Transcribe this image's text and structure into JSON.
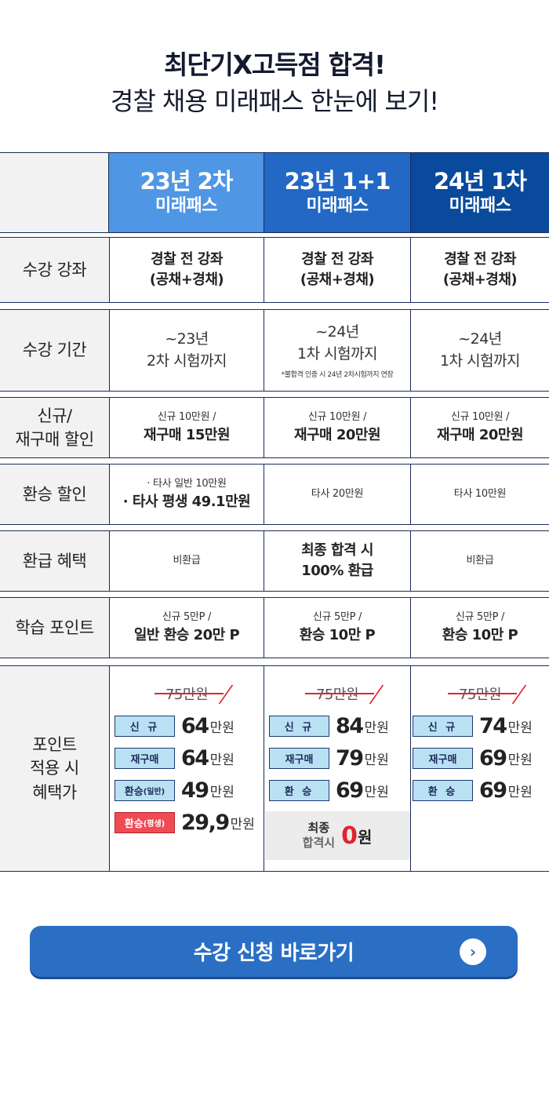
{
  "hero": {
    "line1": "최단기X고득점 합격!",
    "line2": "경찰 채용 미래패스 한눈에 보기!"
  },
  "columns": [
    {
      "title": "23년 2차",
      "subtitle": "미래패스"
    },
    {
      "title": "23년 1+1",
      "subtitle": "미래패스"
    },
    {
      "title": "24년 1차",
      "subtitle": "미래패스"
    }
  ],
  "rows": {
    "courses": {
      "label": "수강 강좌",
      "values": [
        {
          "a": "경찰 전 강좌",
          "b": "(공채+경채)"
        },
        {
          "a": "경찰 전 강좌",
          "b": "(공채+경채)"
        },
        {
          "a": "경찰 전 강좌",
          "b": "(공채+경채)"
        }
      ]
    },
    "period": {
      "label": "수강 기간",
      "values": [
        {
          "a": "~23년",
          "b": "2차 시험까지",
          "note": ""
        },
        {
          "a": "~24년",
          "b": "1차 시험까지",
          "note": "*불합격 인증 시 24년 2차시험까지 연장"
        },
        {
          "a": "~24년",
          "b": "1차 시험까지",
          "note": ""
        }
      ]
    },
    "new_discount": {
      "label_a": "신규/",
      "label_b": "재구매 할인",
      "values": [
        {
          "a": "신규 10만원 /",
          "b": "재구매 15만원"
        },
        {
          "a": "신규 10만원 /",
          "b": "재구매 20만원"
        },
        {
          "a": "신규 10만원 /",
          "b": "재구매 20만원"
        }
      ]
    },
    "transfer_discount": {
      "label": "환승 할인",
      "values": [
        {
          "a": "· 타사 일반 10만원",
          "b": "· 타사 평생 49.1만원"
        },
        {
          "a": "타사 20만원"
        },
        {
          "a": "타사 10만원"
        }
      ]
    },
    "refund": {
      "label": "환급 혜택",
      "values": [
        {
          "a": "비환급"
        },
        {
          "a": "최종 합격 시",
          "b": "100% 환급"
        },
        {
          "a": "비환급"
        }
      ]
    },
    "points": {
      "label": "학습 포인트",
      "values": [
        {
          "a": "신규 5만P /",
          "b": "일반 환승 20만 P"
        },
        {
          "a": "신규 5만P /",
          "b": "환승 10만 P"
        },
        {
          "a": "신규 5만P /",
          "b": "환승 10만 P"
        }
      ]
    },
    "prices": {
      "label_a": "포인트",
      "label_b": "적용 시",
      "label_c": "혜택가",
      "original": "75만원",
      "unit": "만원",
      "col1": [
        {
          "tag": "신 규",
          "tag_small": "",
          "value": "64"
        },
        {
          "tag": "재구매",
          "tag_small": "",
          "value": "64"
        },
        {
          "tag": "환승",
          "tag_small": "(일반)",
          "value": "49"
        },
        {
          "tag": "환승",
          "tag_small": "(평생)",
          "value": "29,9"
        }
      ],
      "col2": [
        {
          "tag": "신 규",
          "value": "84"
        },
        {
          "tag": "재구매",
          "value": "79"
        },
        {
          "tag": "환 승",
          "value": "69"
        }
      ],
      "col3": [
        {
          "tag": "신 규",
          "value": "74"
        },
        {
          "tag": "재구매",
          "value": "69"
        },
        {
          "tag": "환 승",
          "value": "69"
        }
      ],
      "final_label_a": "최종",
      "final_label_b": "합격시",
      "final_value": "0",
      "final_unit": "원"
    }
  },
  "cta": {
    "label": "수강 신청 바로가기",
    "arrow": "›"
  }
}
